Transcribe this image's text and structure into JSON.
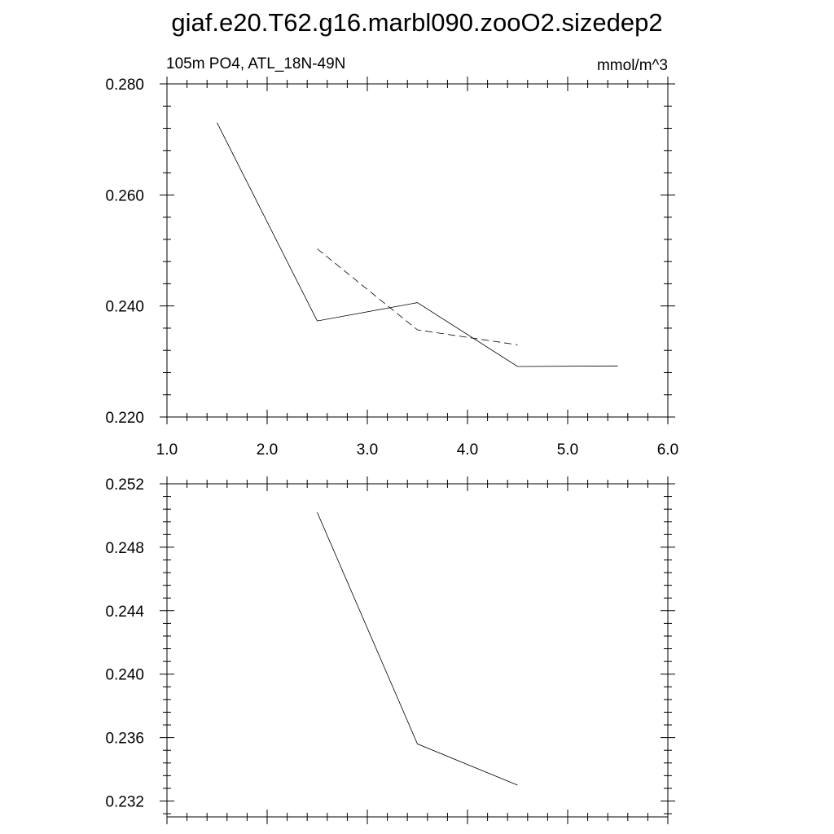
{
  "title": "giaf.e20.T62.g16.marbl090.zooO2.sizedep2",
  "chart_data": [
    {
      "type": "line",
      "left_string": "105m PO4, ATL_18N-49N",
      "right_string": "mmol/m^3",
      "xlim": [
        1.0,
        6.0
      ],
      "ylim": [
        0.22,
        0.28
      ],
      "x_ticks": [
        "1.0",
        "2.0",
        "3.0",
        "4.0",
        "5.0",
        "6.0"
      ],
      "y_ticks": [
        "0.220",
        "0.240",
        "0.260",
        "0.280"
      ],
      "grid": false,
      "series": [
        {
          "style": "solid",
          "x": [
            1.5,
            2.5,
            3.5,
            4.5,
            5.5
          ],
          "values": [
            0.273,
            0.2373,
            0.2406,
            0.2291,
            0.2292
          ]
        },
        {
          "style": "dashed",
          "x": [
            2.5,
            3.5,
            4.5
          ],
          "values": [
            0.2503,
            0.2357,
            0.233
          ]
        }
      ]
    },
    {
      "type": "line",
      "xlim": [
        1.0,
        6.0
      ],
      "ylim": [
        0.231,
        0.252
      ],
      "y_ticks": [
        "0.232",
        "0.236",
        "0.240",
        "0.244",
        "0.248",
        "0.252"
      ],
      "grid": false,
      "series": [
        {
          "style": "solid",
          "x": [
            2.5,
            3.5,
            4.5
          ],
          "values": [
            0.2502,
            0.2356,
            0.233
          ]
        }
      ]
    }
  ]
}
